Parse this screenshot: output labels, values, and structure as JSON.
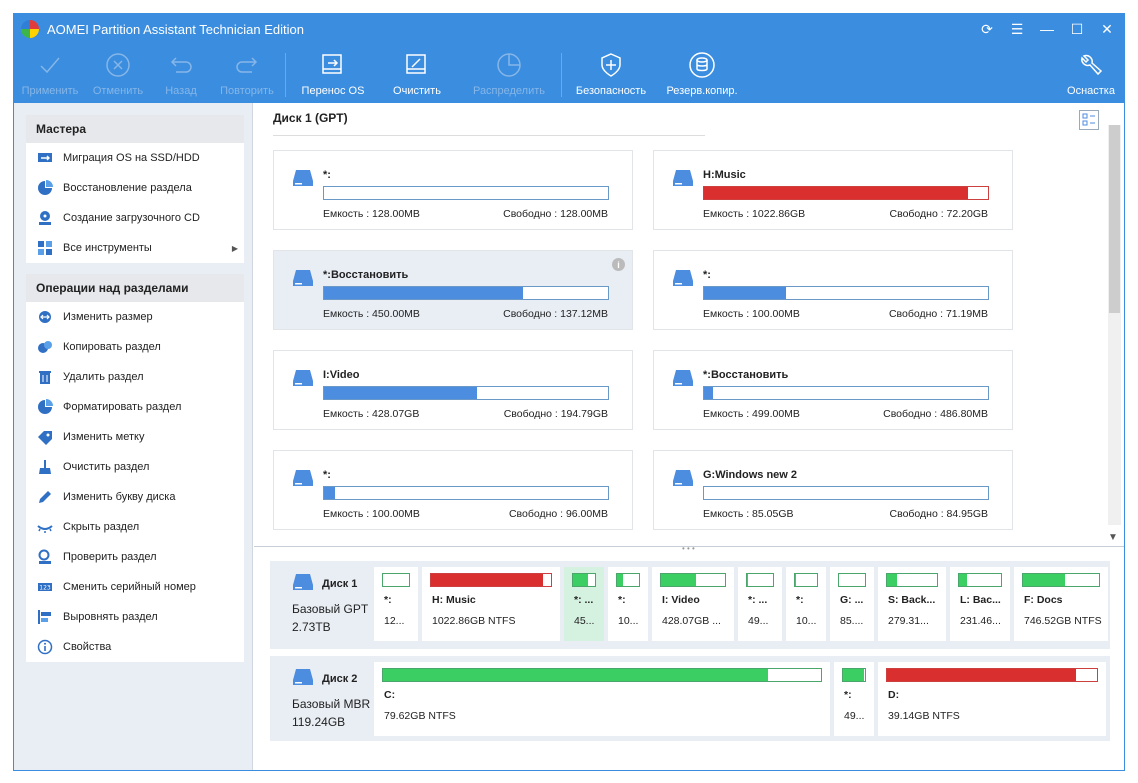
{
  "window": {
    "title": "AOMEI Partition Assistant Technician Edition",
    "controls": [
      "refresh-icon",
      "menu-icon",
      "minimize-icon",
      "maximize-icon",
      "close-icon"
    ]
  },
  "toolbar": {
    "apply": "Применить",
    "discard": "Отменить",
    "undo": "Назад",
    "redo": "Повторить",
    "migrate_os": "Перенос OS",
    "wipe": "Очистить",
    "allocate": "Распределить",
    "security": "Безопасность",
    "backup": "Резерв.копир.",
    "tools": "Оснастка"
  },
  "sidebar": {
    "wizards_title": "Мастера",
    "wizards": [
      {
        "label": "Миграция OS на SSD/HDD",
        "icon": "migrate-icon"
      },
      {
        "label": "Восстановление раздела",
        "icon": "recovery-icon"
      },
      {
        "label": "Создание загрузочного CD",
        "icon": "bootable-cd-icon"
      },
      {
        "label": "Все инструменты",
        "icon": "all-tools-icon"
      }
    ],
    "ops_title": "Операции над разделами",
    "ops": [
      {
        "label": "Изменить размер",
        "icon": "resize-icon"
      },
      {
        "label": "Копировать раздел",
        "icon": "copy-icon"
      },
      {
        "label": "Удалить раздел",
        "icon": "delete-icon"
      },
      {
        "label": "Форматировать раздел",
        "icon": "format-icon"
      },
      {
        "label": "Изменить метку",
        "icon": "label-icon"
      },
      {
        "label": "Очистить раздел",
        "icon": "wipe-icon"
      },
      {
        "label": "Изменить букву диска",
        "icon": "drive-letter-icon"
      },
      {
        "label": "Скрыть раздел",
        "icon": "hide-icon"
      },
      {
        "label": "Проверить раздел",
        "icon": "check-icon"
      },
      {
        "label": "Сменить серийный номер",
        "icon": "serial-icon"
      },
      {
        "label": "Выровнять раздел",
        "icon": "align-icon"
      },
      {
        "label": "Свойства",
        "icon": "properties-icon"
      }
    ]
  },
  "main": {
    "disk_title": "Диск 1 (GPT)",
    "cards": [
      {
        "name": "*:",
        "capacity": "Емкость : 128.00MB",
        "free": "Свободно : 128.00MB",
        "used_pct": 0,
        "color": "#4c8ddf"
      },
      {
        "name": "H:Music",
        "capacity": "Емкость : 1022.86GB",
        "free": "Свободно : 72.20GB",
        "used_pct": 93,
        "color": "#d9302f"
      },
      {
        "name": "*:Восстановить",
        "capacity": "Емкость : 450.00MB",
        "free": "Свободно : 137.12MB",
        "used_pct": 70,
        "color": "#4c8ddf"
      },
      {
        "name": "*:",
        "capacity": "Емкость : 100.00MB",
        "free": "Свободно : 71.19MB",
        "used_pct": 29,
        "color": "#4c8ddf"
      },
      {
        "name": "I:Video",
        "capacity": "Емкость : 428.07GB",
        "free": "Свободно : 194.79GB",
        "used_pct": 54,
        "color": "#4c8ddf"
      },
      {
        "name": "*:Восстановить",
        "capacity": "Емкость : 499.00MB",
        "free": "Свободно : 486.80MB",
        "used_pct": 3,
        "color": "#4c8ddf"
      },
      {
        "name": "*:",
        "capacity": "Емкость : 100.00MB",
        "free": "Свободно : 96.00MB",
        "used_pct": 4,
        "color": "#4c8ddf"
      },
      {
        "name": "G:Windows new 2",
        "capacity": "Емкость : 85.05GB",
        "free": "Свободно : 84.95GB",
        "used_pct": 0,
        "color": "#4c8ddf"
      }
    ]
  },
  "disks": [
    {
      "name": "Диск 1",
      "type": "Базовый GPT",
      "size": "2.73TB",
      "partitions": [
        {
          "label": "*:",
          "size": "12...",
          "used_pct": 0
        },
        {
          "label": "H: Music",
          "size": "1022.86GB NTFS",
          "used_pct": 93,
          "red": true
        },
        {
          "label": "*: ...",
          "size": "45...",
          "used_pct": 70,
          "active": true
        },
        {
          "label": "*:",
          "size": "10...",
          "used_pct": 29
        },
        {
          "label": "I: Video",
          "size": "428.07GB ...",
          "used_pct": 54
        },
        {
          "label": "*: ...",
          "size": "49...",
          "used_pct": 3
        },
        {
          "label": "*:",
          "size": "10...",
          "used_pct": 4
        },
        {
          "label": "G: ...",
          "size": "85....",
          "used_pct": 0
        },
        {
          "label": "S: Back...",
          "size": "279.31...",
          "used_pct": 20
        },
        {
          "label": "L: Bac...",
          "size": "231.46...",
          "used_pct": 20
        },
        {
          "label": "F: Docs",
          "size": "746.52GB NTFS",
          "used_pct": 55
        }
      ]
    },
    {
      "name": "Диск 2",
      "type": "Базовый MBR",
      "size": "119.24GB",
      "partitions": [
        {
          "label": "C:",
          "size": "79.62GB NTFS",
          "used_pct": 88
        },
        {
          "label": "*:",
          "size": "49...",
          "used_pct": 95
        },
        {
          "label": "D:",
          "size": "39.14GB NTFS",
          "used_pct": 90,
          "red": true
        }
      ]
    }
  ]
}
